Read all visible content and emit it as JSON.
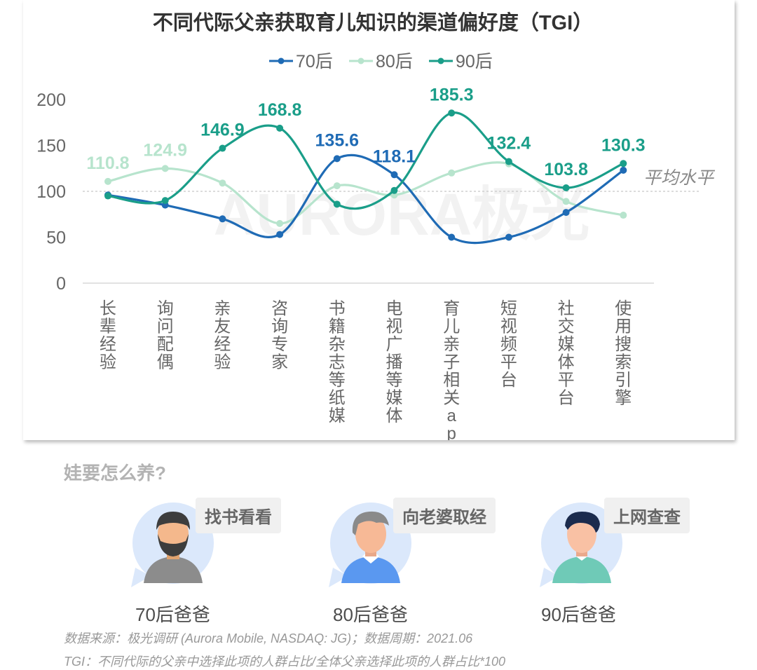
{
  "chart_data": {
    "type": "line",
    "title": "不同代际父亲获取育儿知识的渠道偏好度（TGI）",
    "categories": [
      "长辈经验",
      "询问配偶",
      "亲友经验",
      "咨询专家",
      "书籍杂志等纸媒",
      "电视广播等媒体",
      "育儿亲子相关app",
      "短视频平台",
      "社交媒体平台",
      "使用搜索引擎"
    ],
    "series": [
      {
        "name": "70后",
        "color": "#1f6bb5",
        "values": [
          96,
          85,
          70,
          53,
          135.6,
          118.1,
          50,
          50,
          77,
          123
        ]
      },
      {
        "name": "80后",
        "color": "#b7e4cd",
        "values": [
          110.8,
          124.9,
          109,
          65,
          106,
          96,
          120,
          130,
          89,
          74
        ]
      },
      {
        "name": "90后",
        "color": "#1a9e89",
        "values": [
          95,
          90,
          146.9,
          168.8,
          86,
          101,
          185.3,
          132.4,
          103.8,
          130.3
        ]
      }
    ],
    "data_labels": [
      {
        "category_index": 0,
        "series": "80后",
        "text": "110.8"
      },
      {
        "category_index": 1,
        "series": "80后",
        "text": "124.9"
      },
      {
        "category_index": 2,
        "series": "90后",
        "text": "146.9"
      },
      {
        "category_index": 3,
        "series": "90后",
        "text": "168.8"
      },
      {
        "category_index": 4,
        "series": "70后",
        "text": "135.6"
      },
      {
        "category_index": 5,
        "series": "70后",
        "text": "118.1"
      },
      {
        "category_index": 6,
        "series": "90后",
        "text": "185.3"
      },
      {
        "category_index": 7,
        "series": "90后",
        "text": "132.4"
      },
      {
        "category_index": 8,
        "series": "90后",
        "text": "103.8"
      },
      {
        "category_index": 9,
        "series": "90后",
        "text": "130.3"
      }
    ],
    "ylim": [
      0,
      200
    ],
    "yticks": [
      "0",
      "50",
      "100",
      "150",
      "200"
    ],
    "reference_line": {
      "value": 100,
      "label": "平均水平"
    },
    "legend_position": "top-center",
    "grid": false,
    "watermark": "AURORA极光"
  },
  "section_title": "娃要怎么养?",
  "personas": [
    {
      "tag": "找书看看",
      "label": "70后爸爸",
      "shirt_color": "#8c8c8c",
      "hair_color": "#3d3d3d"
    },
    {
      "tag": "向老婆取经",
      "label": "80后爸爸",
      "shirt_color": "#5a98f0",
      "hair_color": "#8a8a8a"
    },
    {
      "tag": "上网查查",
      "label": "90后爸爸",
      "shirt_color": "#6fcab7",
      "hair_color": "#1b2b4d"
    }
  ],
  "footnotes": {
    "source": "数据来源：极光调研 (Aurora Mobile, NASDAQ: JG)；数据周期：2021.06",
    "tgi": "TGI：不同代际的父亲中选择此项的人群占比/全体父亲选择此项的人群占比*100"
  }
}
